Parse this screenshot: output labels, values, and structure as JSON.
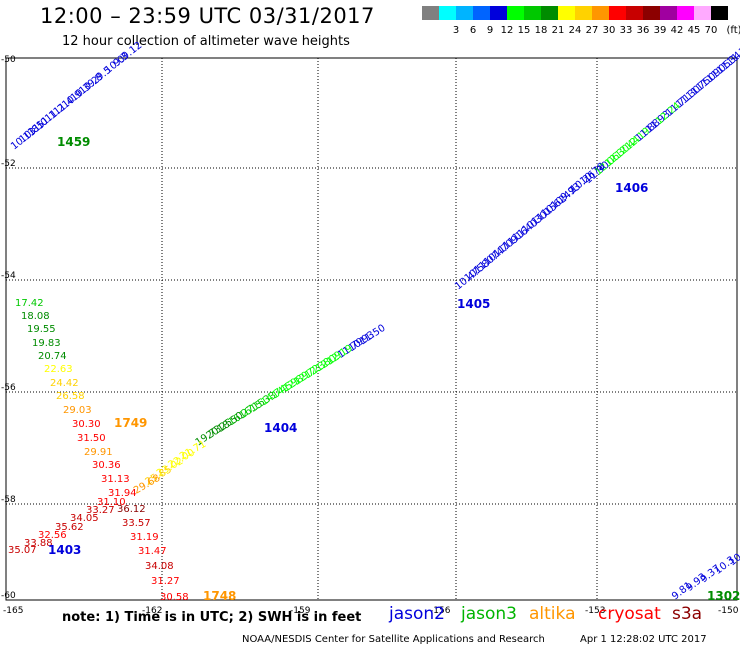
{
  "header": {
    "title": "12:00 – 23:59 UTC 03/31/2017",
    "subtitle": "12 hour collection of altimeter wave heights"
  },
  "legend": {
    "unit": "(ft)",
    "swatches": [
      {
        "color": "#808080",
        "label": ""
      },
      {
        "color": "#00ffff",
        "label": "3"
      },
      {
        "color": "#00b4ff",
        "label": "6"
      },
      {
        "color": "#0064ff",
        "label": "9"
      },
      {
        "color": "#0000dc",
        "label": "12"
      },
      {
        "color": "#00ff00",
        "label": "15"
      },
      {
        "color": "#00c800",
        "label": "18"
      },
      {
        "color": "#008c00",
        "label": "21"
      },
      {
        "color": "#ffff00",
        "label": "24"
      },
      {
        "color": "#ffd200",
        "label": "27"
      },
      {
        "color": "#ff9600",
        "label": "30"
      },
      {
        "color": "#ff0000",
        "label": "33"
      },
      {
        "color": "#c80000",
        "label": "36"
      },
      {
        "color": "#8c0000",
        "label": "39"
      },
      {
        "color": "#a000a0",
        "label": "42"
      },
      {
        "color": "#ff00ff",
        "label": "45"
      },
      {
        "color": "#ffaaff",
        "label": "70"
      },
      {
        "color": "#000000",
        "label": ""
      }
    ]
  },
  "axes": {
    "lat_labels": [
      "-50",
      "-52",
      "-54",
      "-56",
      "-58",
      "-60"
    ],
    "lon_labels": [
      "-165",
      "-162",
      "-159",
      "-156",
      "-153",
      "-150"
    ]
  },
  "passes": [
    {
      "label": "1459",
      "color": "#008c00"
    },
    {
      "label": "1406",
      "color": "#0000dc"
    },
    {
      "label": "1405",
      "color": "#0000dc"
    },
    {
      "label": "1404",
      "color": "#0000dc"
    },
    {
      "label": "1749",
      "color": "#ff9600"
    },
    {
      "label": "1403",
      "color": "#0000dc"
    },
    {
      "label": "1748",
      "color": "#ff9600"
    },
    {
      "label": "1302",
      "color": "#008c00"
    }
  ],
  "swh_values": {
    "top_left": [
      "10.13",
      "10.85",
      "11.0",
      "11.1",
      "11.2",
      "11.4",
      "10.9",
      "10.3",
      "10.2",
      "9.8",
      "9.5",
      "10.0",
      "9.3",
      "9.12"
    ],
    "top_right": [
      "11.90",
      "12.06",
      "12.30",
      "12.44",
      "12.19",
      "11.88",
      "11.93",
      "12.24",
      "11.71",
      "11.30",
      "11.75",
      "11.09",
      "11.05",
      "11.34",
      "11.1"
    ],
    "right_mid": [
      "10.47",
      "10.58",
      "11.07",
      "10.47",
      "11.09",
      "11.16",
      "11.40",
      "10.30",
      "11.15",
      "10.62",
      "10.47",
      "9.93",
      "10.26",
      "10.78"
    ],
    "mid": [
      "11.50",
      "10.93",
      "11.79",
      "12.19",
      "12.09",
      "12.38",
      "12.72",
      "12.89",
      "14.59",
      "14.74",
      "15.33",
      "16.15",
      "16.27",
      "18.50",
      "20.25",
      "19.73"
    ],
    "lower_mid": [
      "21.71",
      "22.00",
      "23.02",
      "25.85",
      "29.68"
    ],
    "left_col": [
      "17.42",
      "18.08",
      "19.55",
      "19.83",
      "20.74",
      "22.63",
      "24.42",
      "26.58",
      "29.03",
      "30.30",
      "31.50",
      "29.91",
      "30.36",
      "31.13",
      "31.94",
      "31.10",
      "33.27",
      "36.12",
      "34.05",
      "35.62",
      "32.56",
      "33.88",
      "35.07"
    ],
    "lower_left": [
      "33.57",
      "31.19",
      "31.47",
      "34.08",
      "31.27",
      "30.58"
    ],
    "bottom_right": [
      "9.81",
      "9.93",
      "9.37",
      "10.3",
      "10"
    ]
  },
  "footer": {
    "note": "note: 1) Time is in UTC; 2) SWH is in feet",
    "satellites": [
      {
        "name": "jason2",
        "color": "#0000dc"
      },
      {
        "name": "jason3",
        "color": "#00b400"
      },
      {
        "name": "altika",
        "color": "#ff9600"
      },
      {
        "name": "cryosat",
        "color": "#ff0000"
      },
      {
        "name": "s3a",
        "color": "#8c0000"
      }
    ],
    "credit": "NOAA/NESDIS Center for Satellite Applications and Research",
    "generated": "Apr  1 12:28:02 UTC 2017"
  }
}
